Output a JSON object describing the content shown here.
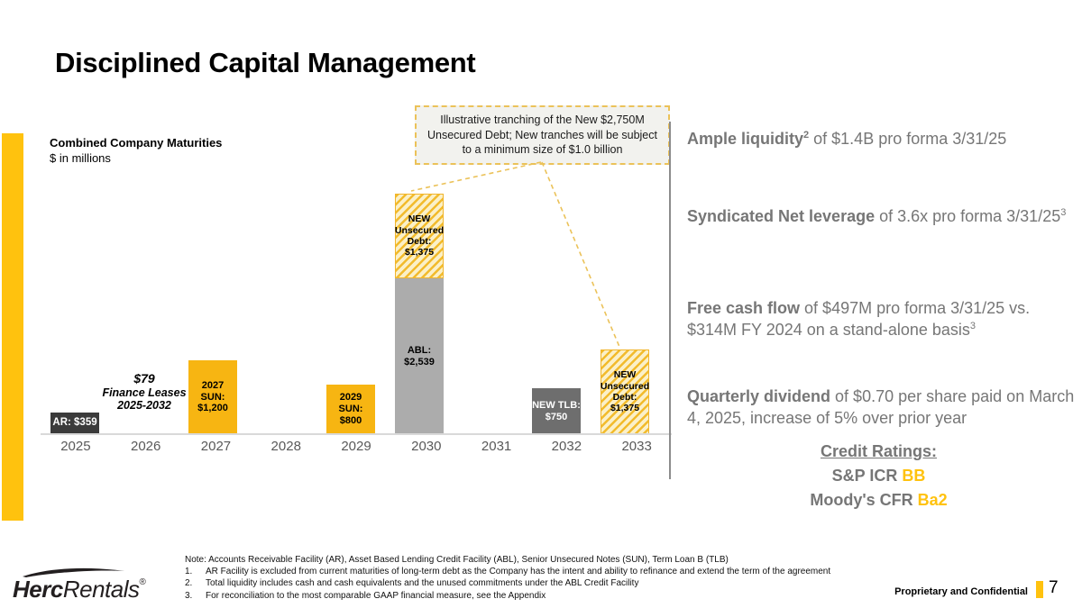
{
  "slide": {
    "title": "Disciplined Capital Management",
    "confidential_label": "Proprietary and Confidential",
    "page_number": "7",
    "logo": {
      "brand_bold": "Herc",
      "brand_light": "Rentals",
      "registered": "®"
    }
  },
  "chart": {
    "callout": "Illustrative tranching of the New $2,750M Unsecured Debt; New tranches will be subject to a minimum size of $1.0 billion"
  },
  "chart_data": {
    "type": "bar",
    "stacked": true,
    "title": "Combined Company Maturities",
    "units": "$ in millions",
    "grid": false,
    "value_axis_visible": false,
    "ylim": [
      0,
      4000
    ],
    "categories": [
      "2025",
      "2026",
      "2027",
      "2028",
      "2029",
      "2030",
      "2031",
      "2032",
      "2033"
    ],
    "annotation_2026": {
      "amount": "$79",
      "line2": "Finance Leases",
      "line3": "2025-2032"
    },
    "bars": {
      "ar2025": {
        "category": "2025",
        "label": "AR: $359",
        "value": 359,
        "color": "#3B3B3B"
      },
      "sun2027": {
        "category": "2027",
        "label": "2027 SUN:\n$1,200",
        "value": 1200,
        "color": "#F7B512"
      },
      "sun2029": {
        "category": "2029",
        "label": "2029 SUN:\n$800",
        "value": 800,
        "color": "#F7B512"
      },
      "abl2030": {
        "category": "2030",
        "label": "ABL:\n$2,539",
        "value": 2539,
        "color": "#ACACAC"
      },
      "new2030": {
        "category": "2030",
        "label": "NEW\nUnsecured\nDebt:\n$1,375",
        "value": 1375,
        "color": "yellow-striped"
      },
      "tlb2032": {
        "category": "2032",
        "label": "NEW TLB:\n$750",
        "value": 750,
        "color": "#6E6E6E"
      },
      "new2033": {
        "category": "2033",
        "label": "NEW\nUnsecured\nDebt:\n$1,375",
        "value": 1375,
        "color": "yellow-striped"
      }
    }
  },
  "highlights": [
    {
      "bold": "Ample liquidity",
      "bold_sup": "2",
      "rest": " of $1.4B pro forma 3/31/25",
      "end_sup": ""
    },
    {
      "bold": "Syndicated Net leverage",
      "bold_sup": "",
      "rest": " of 3.6x pro forma 3/31/25",
      "end_sup": "3"
    },
    {
      "bold": "Free cash flow",
      "bold_sup": "",
      "rest": " of $497M pro forma 3/31/25 vs. $314M FY 2024 on a stand-alone basis",
      "end_sup": "3"
    },
    {
      "bold": "Quarterly dividend",
      "bold_sup": "",
      "rest": " of $0.70 per share paid on March 4, 2025, increase of 5% over prior year",
      "end_sup": ""
    }
  ],
  "credit_ratings": {
    "heading": "Credit Ratings:",
    "items": [
      {
        "agency": "S&P ICR ",
        "rating": "BB"
      },
      {
        "agency": "Moody's CFR ",
        "rating": "Ba2"
      }
    ]
  },
  "footnotes": {
    "note": "Note: Accounts Receivable Facility (AR), Asset Based Lending Credit Facility (ABL), Senior Unsecured Notes (SUN), Term Loan B (TLB)",
    "items": [
      {
        "num": "1.",
        "text": "AR Facility is excluded from current maturities of long-term debt as the Company has the intent and ability to refinance and extend the term of the agreement"
      },
      {
        "num": "2.",
        "text": "Total liquidity includes cash and cash equivalents and the unused commitments under the ABL Credit Facility"
      },
      {
        "num": "3.",
        "text": "For reconciliation to the most comparable GAAP financial measure, see the Appendix"
      }
    ]
  }
}
